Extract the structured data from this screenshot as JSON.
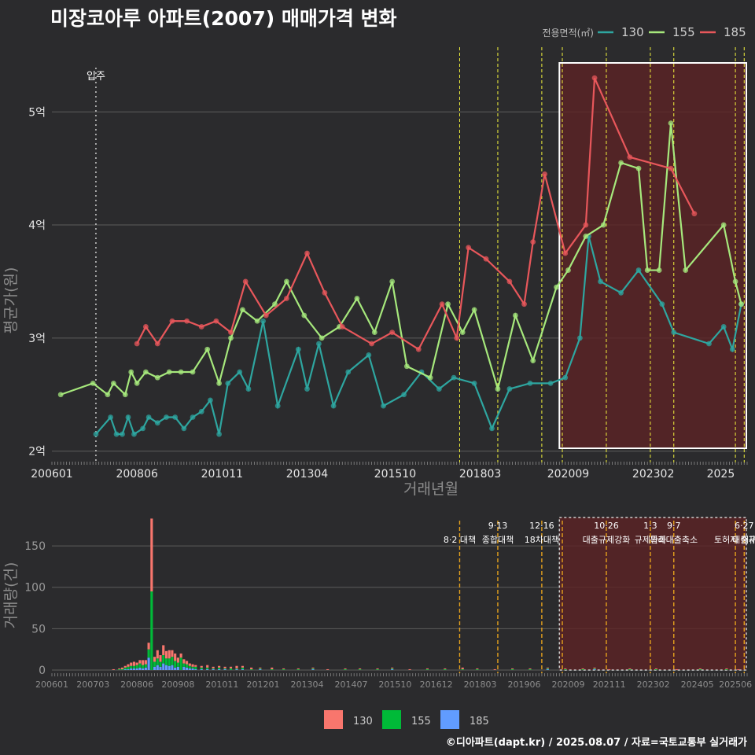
{
  "title": "미장코아루 아파트(2007) 매매가격 변화",
  "footer": "©디아파트(dapt.kr) / 2025.08.07 / 자료=국토교통부 실거래가",
  "colors": {
    "background": "#2b2b2d",
    "grid": "#5c5c5c",
    "s130": "#2ea6a0",
    "s155": "#a6e87c",
    "s185": "#e8575b",
    "b130": "#f8766d",
    "b155": "#00ba38",
    "b185": "#619cff",
    "policy_top": "#f2f23c",
    "policy_bottom": "#e6a21d",
    "highlight_fill": "#5c2324"
  },
  "chart_data": [
    {
      "type": "line",
      "id": "price",
      "xlabel": "거래년월",
      "ylabel": "평균가(원)",
      "x_ticks": [
        "200601",
        "200806",
        "201011",
        "201304",
        "201510",
        "201803",
        "202009",
        "202302",
        "2025"
      ],
      "y_ticks": [
        "2억",
        "3억",
        "4억",
        "5억"
      ],
      "ylim": [
        1.9,
        5.6
      ],
      "legend_title": "전용면적(㎡)",
      "legend_position": "top-right",
      "grid": true,
      "move_in": {
        "label": "입주",
        "date": "2007-04"
      },
      "policy_dates": [
        "2017-08",
        "2018-09",
        "2019-12",
        "2020-07",
        "2021-10",
        "2023-01",
        "2023-09",
        "2025-06",
        "2025-09"
      ],
      "highlight": {
        "from": "2020-06",
        "to": "2025-12"
      },
      "series": [
        {
          "name": "130",
          "values": [
            [
              "2007-04",
              2.15
            ],
            [
              "2007-09",
              2.3
            ],
            [
              "2007-11",
              2.15
            ],
            [
              "2008-01",
              2.15
            ],
            [
              "2008-03",
              2.3
            ],
            [
              "2008-05",
              2.15
            ],
            [
              "2008-08",
              2.2
            ],
            [
              "2008-10",
              2.3
            ],
            [
              "2009-01",
              2.25
            ],
            [
              "2009-04",
              2.3
            ],
            [
              "2009-07",
              2.3
            ],
            [
              "2009-10",
              2.2
            ],
            [
              "2010-01",
              2.3
            ],
            [
              "2010-04",
              2.35
            ],
            [
              "2010-07",
              2.45
            ],
            [
              "2010-10",
              2.15
            ],
            [
              "2011-01",
              2.6
            ],
            [
              "2011-05",
              2.7
            ],
            [
              "2011-08",
              2.55
            ],
            [
              "2012-01",
              3.15
            ],
            [
              "2012-06",
              2.4
            ],
            [
              "2013-01",
              2.9
            ],
            [
              "2013-04",
              2.55
            ],
            [
              "2013-08",
              2.95
            ],
            [
              "2014-01",
              2.4
            ],
            [
              "2014-06",
              2.7
            ],
            [
              "2015-01",
              2.85
            ],
            [
              "2015-06",
              2.4
            ],
            [
              "2016-01",
              2.5
            ],
            [
              "2016-07",
              2.7
            ],
            [
              "2017-01",
              2.55
            ],
            [
              "2017-06",
              2.65
            ],
            [
              "2018-01",
              2.6
            ],
            [
              "2018-07",
              2.2
            ],
            [
              "2019-01",
              2.55
            ],
            [
              "2019-08",
              2.6
            ],
            [
              "2020-03",
              2.6
            ],
            [
              "2020-08",
              2.65
            ],
            [
              "2021-01",
              3.0
            ],
            [
              "2021-04",
              3.9
            ],
            [
              "2021-08",
              3.5
            ],
            [
              "2022-03",
              3.4
            ],
            [
              "2022-09",
              3.6
            ],
            [
              "2023-05",
              3.3
            ],
            [
              "2023-09",
              3.05
            ],
            [
              "2024-09",
              2.95
            ],
            [
              "2025-02",
              3.1
            ],
            [
              "2025-05",
              2.9
            ],
            [
              "2025-08",
              3.3
            ]
          ]
        },
        {
          "name": "155",
          "values": [
            [
              "2006-04",
              2.5
            ],
            [
              "2007-03",
              2.6
            ],
            [
              "2007-08",
              2.5
            ],
            [
              "2007-10",
              2.6
            ],
            [
              "2008-02",
              2.5
            ],
            [
              "2008-04",
              2.7
            ],
            [
              "2008-06",
              2.6
            ],
            [
              "2008-09",
              2.7
            ],
            [
              "2009-01",
              2.65
            ],
            [
              "2009-05",
              2.7
            ],
            [
              "2009-09",
              2.7
            ],
            [
              "2010-01",
              2.7
            ],
            [
              "2010-06",
              2.9
            ],
            [
              "2010-10",
              2.6
            ],
            [
              "2011-02",
              3.0
            ],
            [
              "2011-06",
              3.25
            ],
            [
              "2011-11",
              3.15
            ],
            [
              "2012-05",
              3.3
            ],
            [
              "2012-09",
              3.5
            ],
            [
              "2013-03",
              3.2
            ],
            [
              "2013-09",
              3.0
            ],
            [
              "2014-03",
              3.1
            ],
            [
              "2014-09",
              3.35
            ],
            [
              "2015-03",
              3.05
            ],
            [
              "2015-09",
              3.5
            ],
            [
              "2016-02",
              2.75
            ],
            [
              "2016-10",
              2.65
            ],
            [
              "2017-04",
              3.3
            ],
            [
              "2017-09",
              3.05
            ],
            [
              "2018-01",
              3.25
            ],
            [
              "2018-09",
              2.55
            ],
            [
              "2019-03",
              3.2
            ],
            [
              "2019-09",
              2.8
            ],
            [
              "2020-05",
              3.45
            ],
            [
              "2020-09",
              3.6
            ],
            [
              "2021-03",
              3.9
            ],
            [
              "2021-09",
              4.0
            ],
            [
              "2022-03",
              4.55
            ],
            [
              "2022-09",
              4.5
            ],
            [
              "2022-12",
              3.6
            ],
            [
              "2023-04",
              3.6
            ],
            [
              "2023-08",
              4.9
            ],
            [
              "2024-01",
              3.6
            ],
            [
              "2025-02",
              4.0
            ],
            [
              "2025-06",
              3.5
            ],
            [
              "2025-08",
              3.3
            ]
          ]
        },
        {
          "name": "185",
          "values": [
            [
              "2008-06",
              2.95
            ],
            [
              "2008-09",
              3.1
            ],
            [
              "2009-01",
              2.95
            ],
            [
              "2009-06",
              3.15
            ],
            [
              "2009-11",
              3.15
            ],
            [
              "2010-04",
              3.1
            ],
            [
              "2010-09",
              3.15
            ],
            [
              "2011-02",
              3.05
            ],
            [
              "2011-07",
              3.5
            ],
            [
              "2012-02",
              3.2
            ],
            [
              "2012-09",
              3.35
            ],
            [
              "2013-04",
              3.75
            ],
            [
              "2013-10",
              3.4
            ],
            [
              "2014-04",
              3.1
            ],
            [
              "2015-02",
              2.95
            ],
            [
              "2015-09",
              3.05
            ],
            [
              "2016-06",
              2.9
            ],
            [
              "2017-02",
              3.3
            ],
            [
              "2017-07",
              3.0
            ],
            [
              "2017-11",
              3.8
            ],
            [
              "2018-05",
              3.7
            ],
            [
              "2019-01",
              3.5
            ],
            [
              "2019-06",
              3.3
            ],
            [
              "2019-09",
              3.85
            ],
            [
              "2020-01",
              4.45
            ],
            [
              "2020-08",
              3.75
            ],
            [
              "2021-03",
              4.0
            ],
            [
              "2021-06",
              5.3
            ],
            [
              "2022-06",
              4.6
            ],
            [
              "2023-08",
              4.5
            ],
            [
              "2024-04",
              4.1
            ]
          ]
        }
      ]
    },
    {
      "type": "bar",
      "id": "volume",
      "ylabel": "거래량(건)",
      "y_ticks": [
        "0",
        "50",
        "100",
        "150"
      ],
      "ylim": [
        0,
        190
      ],
      "stacked": true,
      "x_ticks": [
        "200601",
        "200703",
        "200806",
        "200908",
        "201011",
        "201201",
        "201304",
        "201407",
        "201510",
        "201612",
        "201803",
        "201906",
        "202009",
        "202111",
        "202302",
        "202405",
        "202506"
      ],
      "legend": [
        "130",
        "155",
        "185"
      ],
      "legend_position": "bottom",
      "highlight": {
        "from": "2020-06",
        "to": "2025-12"
      },
      "annotations": [
        {
          "date": "2017-08",
          "line1": "",
          "line2": "8·2 대책"
        },
        {
          "date": "2018-09",
          "line1": "9·13",
          "line2": "종합대책"
        },
        {
          "date": "2019-12",
          "line1": "12·16",
          "line2": "18차대책"
        },
        {
          "date": "2020-07",
          "line1": "",
          "line2": ""
        },
        {
          "date": "2021-10",
          "line1": "10·26",
          "line2": "대출규제강화"
        },
        {
          "date": "2023-01",
          "line1": "1·3",
          "line2": "규제완화"
        },
        {
          "date": "2023-09",
          "line1": "9·7",
          "line2": "특례대출축소"
        },
        {
          "date": "2025-06",
          "line1": "",
          "line2": "토허제 해제"
        },
        {
          "date": "2025-09",
          "line1": "6·27",
          "line2": "대출규"
        }
      ],
      "bars": [
        [
          "2007-10",
          1,
          0,
          0
        ],
        [
          "2007-12",
          1,
          1,
          0
        ],
        [
          "2008-01",
          2,
          1,
          0
        ],
        [
          "2008-02",
          2,
          2,
          1
        ],
        [
          "2008-03",
          3,
          3,
          1
        ],
        [
          "2008-04",
          4,
          3,
          2
        ],
        [
          "2008-05",
          5,
          3,
          2
        ],
        [
          "2008-06",
          3,
          4,
          2
        ],
        [
          "2008-07",
          4,
          5,
          3
        ],
        [
          "2008-08",
          6,
          4,
          2
        ],
        [
          "2008-09",
          5,
          4,
          3
        ],
        [
          "2008-10",
          8,
          10,
          15
        ],
        [
          "2008-11",
          88,
          95,
          0
        ],
        [
          "2008-12",
          6,
          6,
          4
        ],
        [
          "2009-01",
          10,
          8,
          6
        ],
        [
          "2009-02",
          8,
          6,
          4
        ],
        [
          "2009-03",
          12,
          10,
          8
        ],
        [
          "2009-04",
          9,
          8,
          6
        ],
        [
          "2009-05",
          10,
          9,
          5
        ],
        [
          "2009-06",
          8,
          10,
          6
        ],
        [
          "2009-07",
          9,
          8,
          3
        ],
        [
          "2009-08",
          6,
          5,
          4
        ],
        [
          "2009-09",
          5,
          15,
          0
        ],
        [
          "2009-10",
          5,
          4,
          4
        ],
        [
          "2009-11",
          4,
          4,
          3
        ],
        [
          "2009-12",
          3,
          3,
          2
        ],
        [
          "2010-01",
          3,
          2,
          2
        ],
        [
          "2010-02",
          2,
          3,
          1
        ],
        [
          "2010-04",
          2,
          2,
          1
        ],
        [
          "2010-06",
          3,
          2,
          1
        ],
        [
          "2010-08",
          2,
          1,
          1
        ],
        [
          "2010-10",
          2,
          2,
          1
        ],
        [
          "2010-12",
          2,
          1,
          1
        ],
        [
          "2011-02",
          2,
          2,
          0
        ],
        [
          "2011-04",
          3,
          1,
          1
        ],
        [
          "2011-06",
          2,
          2,
          1
        ],
        [
          "2011-09",
          2,
          1,
          0
        ],
        [
          "2011-12",
          1,
          1,
          1
        ],
        [
          "2012-04",
          2,
          1,
          0
        ],
        [
          "2012-08",
          1,
          1,
          0
        ],
        [
          "2013-01",
          1,
          1,
          0
        ],
        [
          "2013-06",
          1,
          1,
          1
        ],
        [
          "2013-11",
          1,
          0,
          0
        ],
        [
          "2014-05",
          1,
          1,
          0
        ],
        [
          "2014-10",
          1,
          1,
          0
        ],
        [
          "2015-04",
          1,
          1,
          0
        ],
        [
          "2015-09",
          1,
          1,
          1
        ],
        [
          "2016-03",
          1,
          0,
          0
        ],
        [
          "2016-09",
          1,
          1,
          0
        ],
        [
          "2017-03",
          1,
          1,
          0
        ],
        [
          "2017-09",
          2,
          1,
          0
        ],
        [
          "2018-02",
          1,
          1,
          0
        ],
        [
          "2018-08",
          1,
          0,
          0
        ],
        [
          "2019-02",
          1,
          1,
          0
        ],
        [
          "2019-08",
          1,
          1,
          0
        ],
        [
          "2020-02",
          1,
          1,
          1
        ],
        [
          "2020-08",
          1,
          1,
          0
        ],
        [
          "2021-02",
          1,
          1,
          0
        ],
        [
          "2021-06",
          1,
          1,
          1
        ],
        [
          "2021-11",
          1,
          0,
          0
        ],
        [
          "2022-06",
          1,
          1,
          0
        ],
        [
          "2023-03",
          1,
          1,
          0
        ],
        [
          "2023-10",
          1,
          0,
          0
        ],
        [
          "2024-06",
          1,
          1,
          0
        ],
        [
          "2025-03",
          1,
          1,
          0
        ],
        [
          "2025-07",
          1,
          0,
          0
        ]
      ]
    }
  ]
}
